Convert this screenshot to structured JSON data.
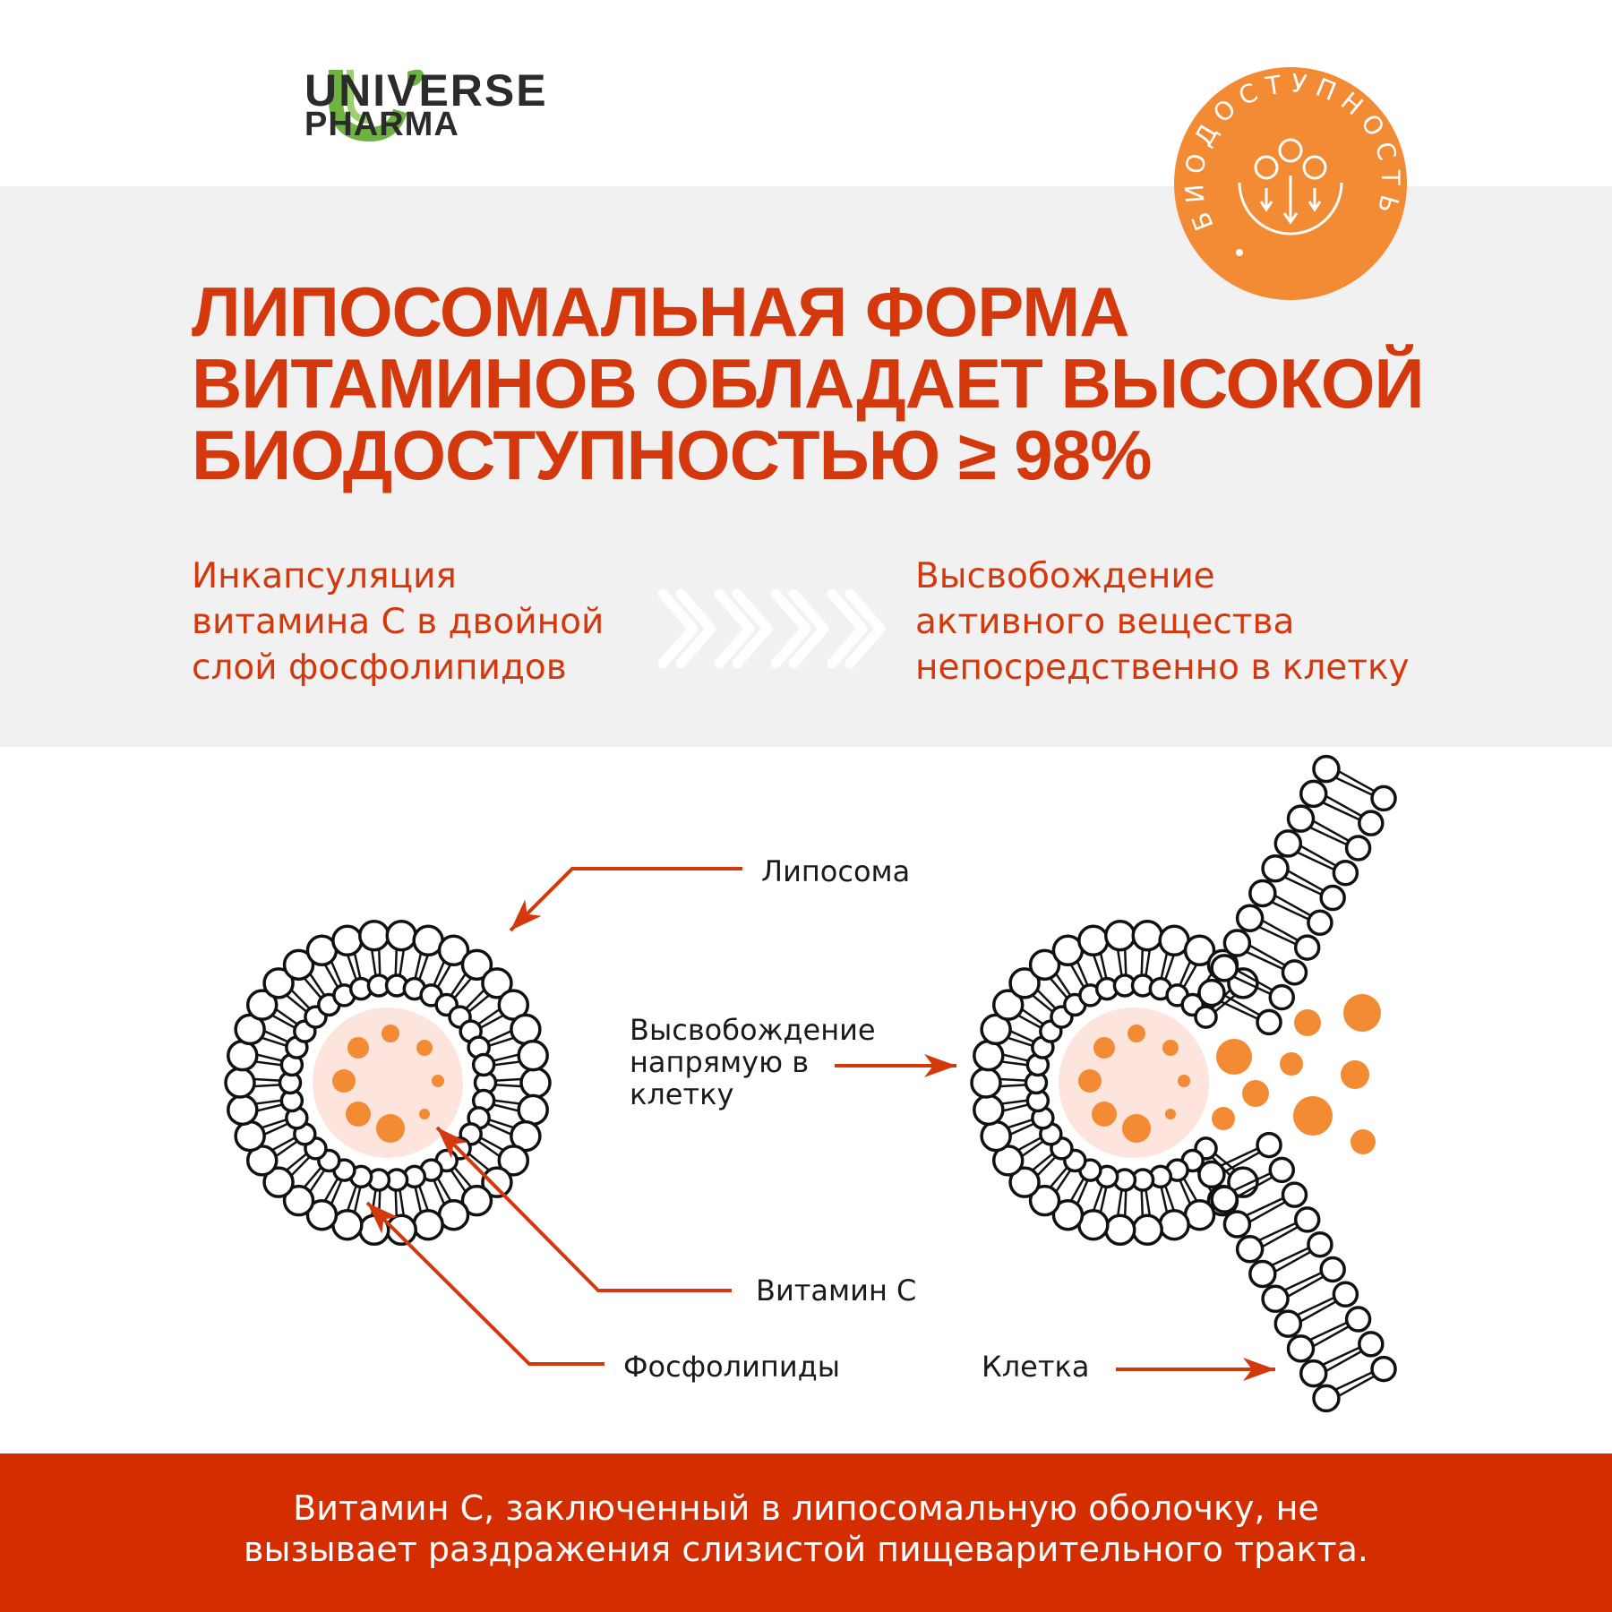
{
  "brand": {
    "line1": "UNIVERSE",
    "line2": "PHARMA",
    "green": "#6cb33f"
  },
  "badge": {
    "text": "БИОДОСТУПНОСТЬ",
    "color": "#f28b33",
    "icon": "absorption-icon"
  },
  "title": {
    "lines": [
      "ЛИПОСОМАЛЬНАЯ ФОРМА",
      "ВИТАМИНОВ ОБЛАДАЕТ ВЫСОКОЙ",
      "БИОДОСТУПНОСТЬЮ ≥ 98%"
    ],
    "color": "#d4380d"
  },
  "process": {
    "left": [
      "Инкапсуляция",
      "витамина С в двойной",
      "слой фосфолипидов"
    ],
    "arrow_icon": "chevrons-right-icon",
    "right": [
      "Высвобождение",
      "активного вещества",
      "непосредственно в клетку"
    ]
  },
  "diagram": {
    "liposome": "Липосома",
    "release": [
      "Высвобождение",
      "напрямую в",
      "клетку"
    ],
    "vitamin": "Витамин С",
    "phospholipids": "Фосфолипиды",
    "cell": "Клетка",
    "dot_color": "#f28b33",
    "core_color": "#fde4dd",
    "arrow_color": "#d4380d"
  },
  "footer": {
    "lines": [
      "Витамин С, заключенный в липосомальную оболочку, не",
      "вызывает раздражения слизистой пищеварительного тракта."
    ],
    "color": "#d42e00"
  }
}
